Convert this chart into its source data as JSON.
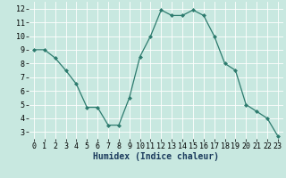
{
  "x": [
    0,
    1,
    2,
    3,
    4,
    5,
    6,
    7,
    8,
    9,
    10,
    11,
    12,
    13,
    14,
    15,
    16,
    17,
    18,
    19,
    20,
    21,
    22,
    23
  ],
  "y": [
    9.0,
    9.0,
    8.4,
    7.5,
    6.5,
    4.8,
    4.8,
    3.5,
    3.5,
    5.5,
    8.5,
    10.0,
    11.9,
    11.5,
    11.5,
    11.9,
    11.5,
    10.0,
    8.0,
    7.5,
    5.0,
    4.5,
    4.0,
    2.7
  ],
  "line_color": "#2d7b6e",
  "marker": "D",
  "marker_size": 2.0,
  "bg_color": "#c8e8e0",
  "grid_color": "#ffffff",
  "xlabel": "Humidex (Indice chaleur)",
  "xlim": [
    -0.5,
    23.5
  ],
  "ylim": [
    2.5,
    12.5
  ],
  "yticks": [
    3,
    4,
    5,
    6,
    7,
    8,
    9,
    10,
    11,
    12
  ],
  "xticks": [
    0,
    1,
    2,
    3,
    4,
    5,
    6,
    7,
    8,
    9,
    10,
    11,
    12,
    13,
    14,
    15,
    16,
    17,
    18,
    19,
    20,
    21,
    22,
    23
  ],
  "xlabel_fontsize": 7.0,
  "tick_fontsize": 6.0,
  "axis_bg_color": "#c8e8e0"
}
